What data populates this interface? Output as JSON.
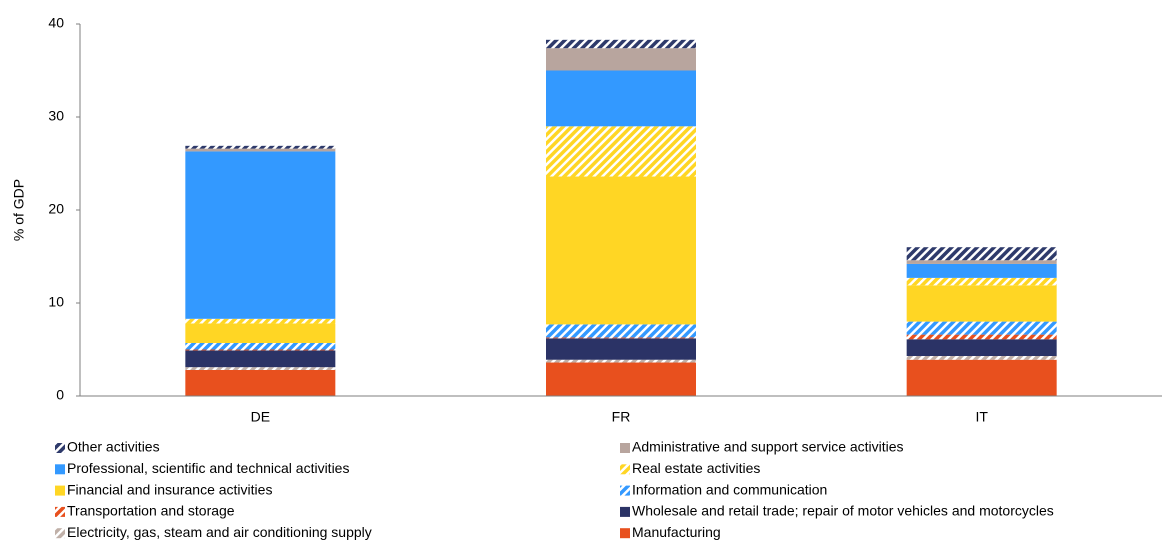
{
  "chart_data": {
    "type": "stacked_bar",
    "y_label": "% of GDP",
    "categories": [
      "DE",
      "FR",
      "IT"
    ],
    "ylim": [
      0,
      40
    ],
    "yticks": [
      0,
      10,
      20,
      30,
      40
    ],
    "grid": false,
    "series": [
      {
        "name": "Manufacturing",
        "color": "#e8501e",
        "pattern": "solid",
        "values": [
          2.8,
          3.6,
          3.9
        ]
      },
      {
        "name": "Electricity, gas, steam and air conditioning supply",
        "color": "#c0b0a8",
        "pattern": "hatch",
        "values": [
          0.3,
          0.3,
          0.4
        ]
      },
      {
        "name": "Wholesale and retail trade; repair of motor vehicles and motorcycles",
        "color": "#2b3366",
        "pattern": "solid",
        "values": [
          1.8,
          2.3,
          1.8
        ]
      },
      {
        "name": "Transportation and storage",
        "color": "#e8501e",
        "pattern": "hatch",
        "values": [
          0.1,
          0.1,
          0.5
        ]
      },
      {
        "name": "Information and communication",
        "color": "#3399ff",
        "pattern": "hatch",
        "values": [
          0.7,
          1.4,
          1.4
        ]
      },
      {
        "name": "Financial and insurance activities",
        "color": "#ffd624",
        "pattern": "solid",
        "values": [
          2.1,
          15.9,
          3.9
        ]
      },
      {
        "name": "Real estate activities",
        "color": "#ffd624",
        "pattern": "hatch",
        "values": [
          0.5,
          5.4,
          0.8
        ]
      },
      {
        "name": "Professional, scientific and technical activities",
        "color": "#3399ff",
        "pattern": "solid",
        "values": [
          18.0,
          6.0,
          1.5
        ]
      },
      {
        "name": "Administrative and support service activities",
        "color": "#b8a59e",
        "pattern": "solid",
        "values": [
          0.3,
          2.4,
          0.4
        ]
      },
      {
        "name": "Other activities",
        "color": "#2e3a6b",
        "pattern": "hatch",
        "values": [
          0.3,
          0.9,
          1.4
        ]
      }
    ]
  }
}
